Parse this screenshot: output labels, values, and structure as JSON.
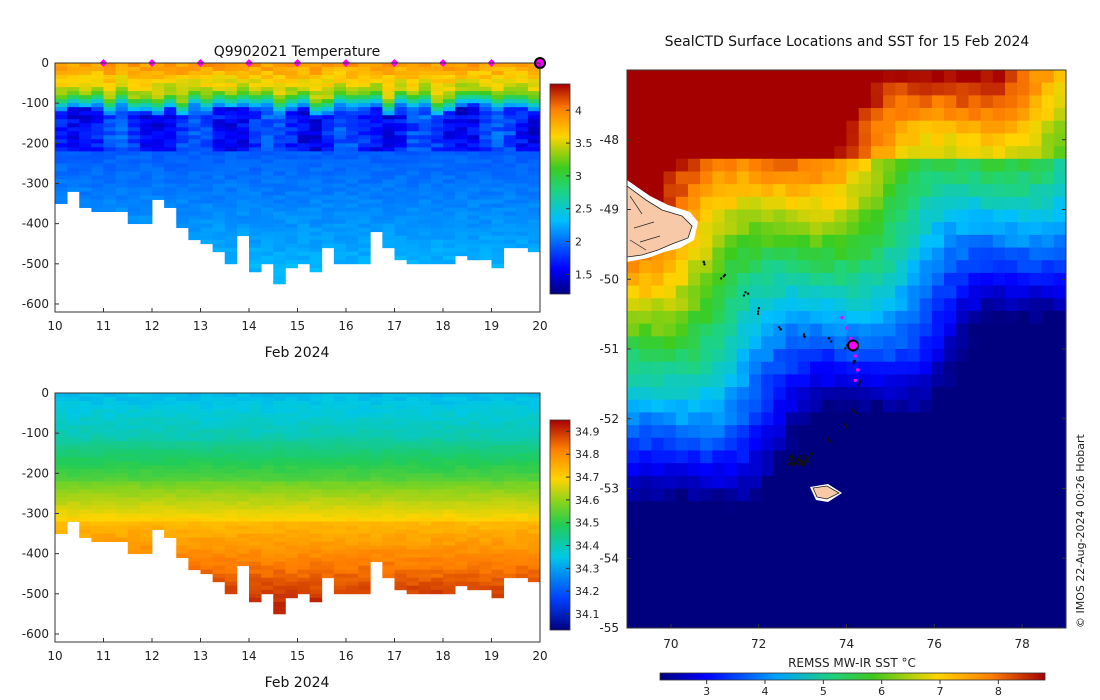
{
  "chart_data": [
    {
      "type": "heatmap",
      "id": "temperature-section",
      "title": "Q9902021  Temperature",
      "xlabel": "Feb 2024",
      "x_ticks": [
        10,
        11,
        12,
        13,
        14,
        15,
        16,
        17,
        18,
        19,
        20
      ],
      "xlim": [
        10,
        20
      ],
      "y_ticks": [
        0,
        -100,
        -200,
        -300,
        -400,
        -500,
        -600
      ],
      "ylim": [
        -620,
        0
      ],
      "colorbar": {
        "min": 1.2,
        "max": 4.4,
        "ticks": [
          1.5,
          2,
          2.5,
          3,
          3.5,
          4
        ]
      },
      "profile_days": [
        10,
        10.25,
        10.5,
        10.75,
        11,
        11.25,
        11.5,
        11.75,
        12,
        12.25,
        12.5,
        12.75,
        13,
        13.25,
        13.5,
        13.75,
        14,
        14.25,
        14.5,
        14.75,
        15,
        15.25,
        15.5,
        15.75,
        16,
        16.25,
        16.5,
        16.75,
        17,
        17.25,
        17.5,
        17.75,
        18,
        18.25,
        18.5,
        18.75,
        19,
        19.25,
        19.5,
        19.75
      ],
      "profile_max_depth": [
        350,
        320,
        355,
        370,
        370,
        365,
        395,
        400,
        340,
        360,
        410,
        440,
        445,
        470,
        500,
        430,
        520,
        500,
        550,
        510,
        500,
        520,
        460,
        500,
        500,
        500,
        420,
        460,
        490,
        500,
        500,
        500,
        500,
        480,
        490,
        490,
        505,
        455,
        460,
        470
      ],
      "surface_markers": [
        11,
        12,
        13,
        14,
        15,
        16,
        17,
        18,
        19
      ],
      "current_marker": 20
    },
    {
      "type": "heatmap",
      "id": "salinity-section",
      "xlabel": "Feb 2024",
      "x_ticks": [
        10,
        11,
        12,
        13,
        14,
        15,
        16,
        17,
        18,
        19,
        20
      ],
      "xlim": [
        10,
        20
      ],
      "y_ticks": [
        0,
        -100,
        -200,
        -300,
        -400,
        -500,
        -600
      ],
      "ylim": [
        -620,
        0
      ],
      "colorbar": {
        "min": 34.03,
        "max": 34.95,
        "ticks": [
          34.1,
          34.2,
          34.3,
          34.4,
          34.5,
          34.6,
          34.7,
          34.8,
          34.9
        ]
      }
    },
    {
      "type": "heatmap",
      "id": "sst-map",
      "title": "SealCTD Surface Locations and SST for 15 Feb 2024",
      "colorbar_label": "REMSS MW-IR SST °C",
      "x_ticks": [
        70,
        72,
        74,
        76,
        78
      ],
      "xlim": [
        69,
        79
      ],
      "y_ticks": [
        -48,
        -49,
        -50,
        -51,
        -52,
        -53,
        -54,
        -55
      ],
      "ylim": [
        -55,
        -47
      ],
      "colorbar": {
        "min": 2.2,
        "max": 8.8,
        "ticks": [
          3,
          4,
          5,
          6,
          7,
          8
        ]
      },
      "current_position": [
        74.15,
        -50.95
      ],
      "track": [
        [
          70.8,
          -49.75
        ],
        [
          71.2,
          -49.95
        ],
        [
          71.7,
          -50.2
        ],
        [
          72.0,
          -50.45
        ],
        [
          72.5,
          -50.7
        ],
        [
          73.0,
          -50.8
        ],
        [
          73.6,
          -50.85
        ],
        [
          74.0,
          -50.95
        ],
        [
          74.2,
          -51.2
        ],
        [
          74.3,
          -51.5
        ],
        [
          74.2,
          -51.9
        ],
        [
          74.0,
          -52.1
        ],
        [
          73.6,
          -52.3
        ],
        [
          73.2,
          -52.5
        ],
        [
          72.9,
          -52.6
        ]
      ],
      "recent_track": [
        [
          73.9,
          -50.55
        ],
        [
          74.0,
          -50.7
        ],
        [
          74.1,
          -50.85
        ],
        [
          74.15,
          -50.95
        ],
        [
          74.2,
          -51.1
        ],
        [
          74.25,
          -51.3
        ],
        [
          74.2,
          -51.45
        ]
      ],
      "credit": "© IMOS 22-Aug-2024 00:26 Hobart"
    }
  ]
}
